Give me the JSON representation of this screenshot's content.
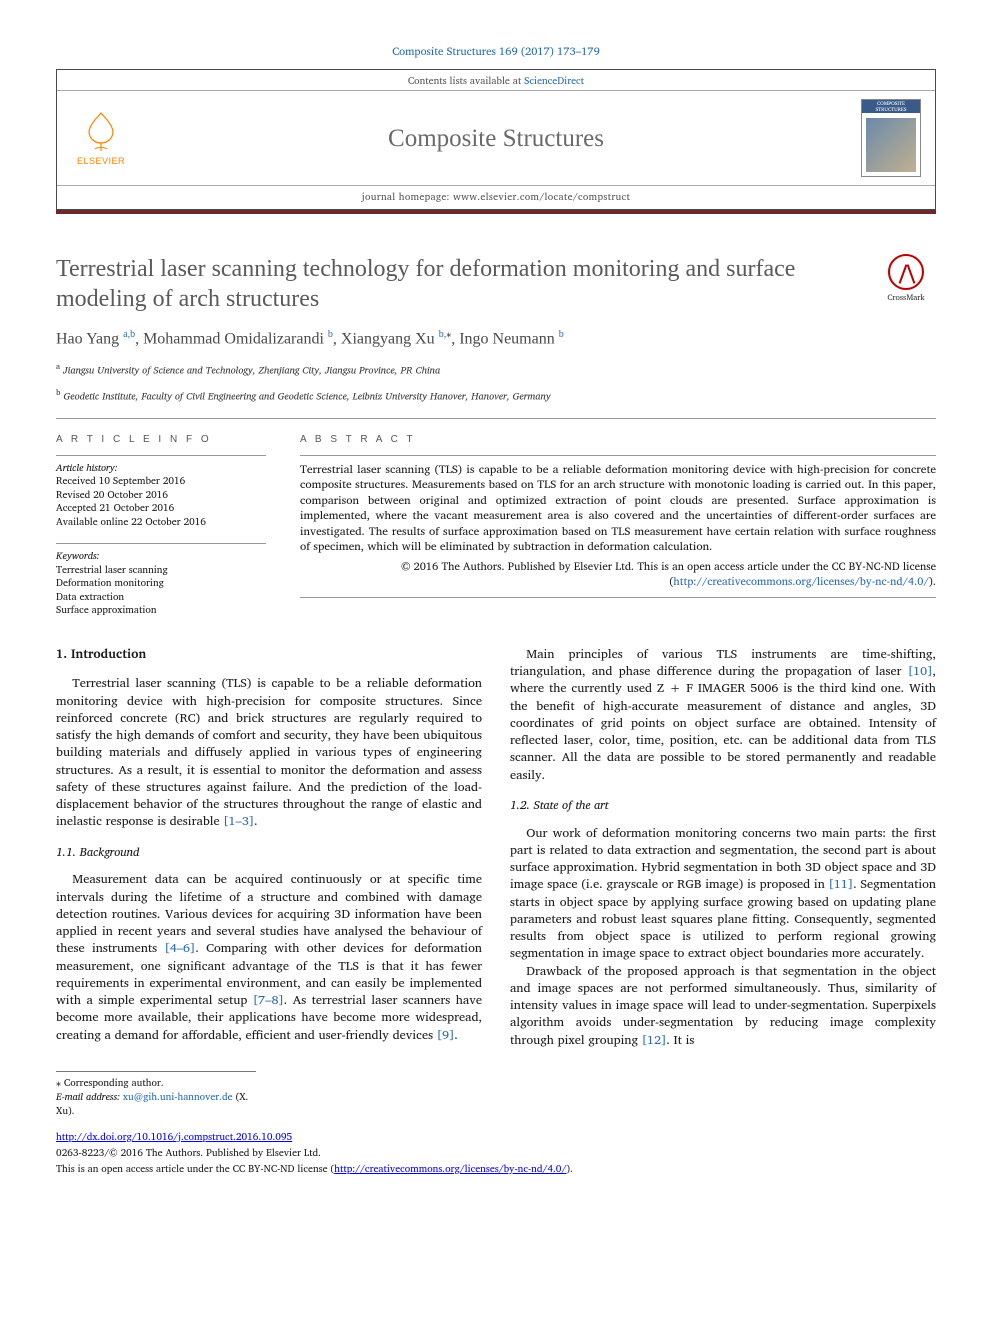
{
  "citation": "Composite Structures 169 (2017) 173–179",
  "header": {
    "contents_line_prefix": "Contents lists available at ",
    "contents_link": "ScienceDirect",
    "journal_name": "Composite Structures",
    "homepage_label": "journal homepage: www.elsevier.com/locate/compstruct",
    "publisher": "ELSEVIER",
    "cover_label": "COMPOSITE STRUCTURES"
  },
  "title": "Terrestrial laser scanning technology for deformation monitoring and surface modeling of arch structures",
  "crossmark": "CrossMark",
  "authors_html": "Hao Yang <sup>a,b</sup>, Mohammad Omidalizarandi <sup>b</sup>, Xiangyang Xu <sup>b,</sup><sup class='ast'>⁎</sup>, Ingo Neumann <sup>b</sup>",
  "affiliations": {
    "a": "Jiangsu University of Science and Technology, Zhenjiang City, Jiangsu Province, PR China",
    "b": "Geodetic Institute, Faculty of Civil Engineering and Geodetic Science, Leibniz University Hanover, Hanover, Germany"
  },
  "info": {
    "head": "A R T I C L E   I N F O",
    "history_label": "Article history:",
    "received": "Received 10 September 2016",
    "revised": "Revised 20 October 2016",
    "accepted": "Accepted 21 October 2016",
    "online": "Available online 22 October 2016",
    "keywords_label": "Keywords:",
    "keywords": [
      "Terrestrial laser scanning",
      "Deformation monitoring",
      "Data extraction",
      "Surface approximation"
    ]
  },
  "abstract": {
    "head": "A B S T R A C T",
    "text": "Terrestrial laser scanning (TLS) is capable to be a reliable deformation monitoring device with high-precision for concrete composite structures. Measurements based on TLS for an arch structure with monotonic loading is carried out. In this paper, comparison between original and optimized extraction of point clouds are presented. Surface approximation is implemented, where the vacant measurement area is also covered and the uncertainties of different-order surfaces are investigated. The results of surface approximation based on TLS measurement have certain relation with surface roughness of specimen, which will be eliminated by subtraction in deformation calculation.",
    "copyright": "© 2016 The Authors. Published by Elsevier Ltd. This is an open access article under the CC BY-NC-ND license",
    "license_url": "(http://creativecommons.org/licenses/by-nc-nd/4.0/)."
  },
  "body": {
    "s1": "1. Introduction",
    "p1": "Terrestrial laser scanning (TLS) is capable to be a reliable deformation monitoring device with high-precision for composite structures. Since reinforced concrete (RC) and brick structures are regularly required to satisfy the high demands of comfort and security, they have been ubiquitous building materials and diffusely applied in various types of engineering structures. As a result, it is essential to monitor the deformation and assess safety of these structures against failure. And the prediction of the load-displacement behavior of the structures throughout the range of elastic and inelastic response is desirable ",
    "r1": "[1–3]",
    "s11": "1.1. Background",
    "p2": "Measurement data can be acquired continuously or at specific time intervals during the lifetime of a structure and combined with damage detection routines. Various devices for acquiring 3D information have been applied in recent years and several studies have analysed the behaviour of these instruments ",
    "r2": "[4–6]",
    "p2b": ". Comparing with other devices for deformation measurement, one significant advantage of the TLS is that it has fewer requirements in experimental environment, and can easily be implemented with a simple experimental setup ",
    "r3": "[7–8]",
    "p2c": ". As terrestrial laser scanners have become more available, their applications have become more widespread, creating a demand for affordable, efficient and user-friendly devices ",
    "r4": "[9]",
    "p3": "Main principles of various TLS instruments are time-shifting, triangulation, and phase difference during the propagation of laser ",
    "r5": "[10]",
    "p3b": ", where the currently used Z + F IMAGER 5006 is the third kind one. With the benefit of high-accurate measurement of distance and angles, 3D coordinates of grid points on object surface are obtained. Intensity of reflected laser, color, time, position, etc. can be additional data from TLS scanner. All the data are possible to be stored permanently and readable easily.",
    "s12": "1.2. State of the art",
    "p4": "Our work of deformation monitoring concerns two main parts: the first part is related to data extraction and segmentation, the second part is about surface approximation. Hybrid segmentation in both 3D object space and 3D image space (i.e. grayscale or RGB image) is proposed in ",
    "r6": "[11]",
    "p4b": ". Segmentation starts in object space by applying surface growing based on updating plane parameters and robust least squares plane fitting. Consequently, segmented results from object space is utilized to perform regional growing segmentation in image space to extract object boundaries more accurately.",
    "p5": "Drawback of the proposed approach is that segmentation in the object and image spaces are not performed simultaneously. Thus, similarity of intensity values in image space will lead to under-segmentation. Superpixels algorithm avoids under-segmentation by reducing image complexity through pixel grouping ",
    "r7": "[12]",
    "p5b": ". It is"
  },
  "footer": {
    "corr_label": "⁎ Corresponding author.",
    "email_label": "E-mail address: ",
    "email": "xu@gih.uni-hannover.de",
    "email_who": " (X. Xu).",
    "doi": "http://dx.doi.org/10.1016/j.compstruct.2016.10.095",
    "issn": "0263-8223/© 2016 The Authors. Published by Elsevier Ltd.",
    "license": "This is an open access article under the CC BY-NC-ND license (",
    "license_url": "http://creativecommons.org/licenses/by-nc-nd/4.0/",
    "license_end": ")."
  },
  "colors": {
    "link": "#2a6ab5",
    "accent": "#6a2a2a",
    "elsevier": "#ff8200"
  }
}
